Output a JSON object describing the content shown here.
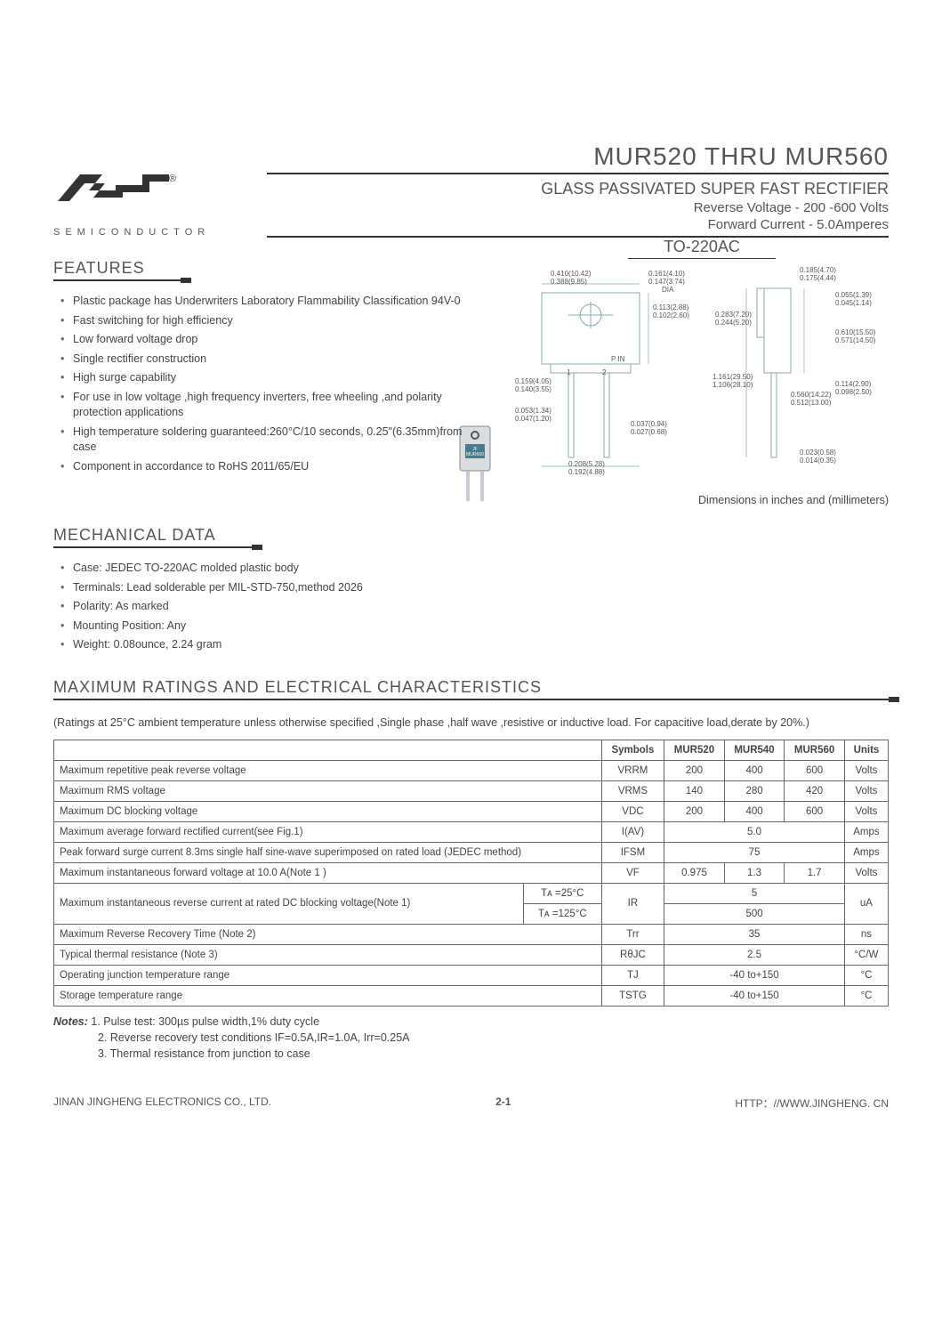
{
  "header": {
    "company_brand": "SEMICONDUCTOR",
    "main_title": "MUR520 THRU MUR560",
    "sub_title": "GLASS PASSIVATED SUPER FAST RECTIFIER",
    "spec1": "Reverse Voltage - 200 -600 Volts",
    "spec2": "Forward Current - 5.0Amperes",
    "reg_mark": "®"
  },
  "features": {
    "heading": "FEATURES",
    "items": [
      "Plastic package has Underwriters Laboratory Flammability Classification 94V-0",
      "Fast switching for high efficiency",
      "Low forward voltage drop",
      "Single rectifier construction",
      "High surge capability",
      "For use in low voltage ,high frequency inverters, free wheeling ,and polarity protection applications",
      "High temperature soldering guaranteed:260°C/10 seconds, 0.25\"(6.35mm)from case",
      "Component in accordance to RoHS 2011/65/EU"
    ]
  },
  "package": {
    "title": "TO-220AC",
    "chip_label": "JF\nMUR560",
    "dims_caption": "Dimensions in inches and (millimeters)",
    "dims": [
      "0.410(10.42)",
      "0.388(9.85)",
      "0.161(4.10)",
      "0.147(3.74)",
      "DIA",
      "0.185(4.70)",
      "0.175(4.44)",
      "0.113(2.88)",
      "0.102(2.60)",
      "0.055(1.39)",
      "0.045(1.14)",
      "0.283(7.20)",
      "0.244(5.20)",
      "0.610(15.50)",
      "0.571(14.50)",
      "P IN",
      "1",
      "2",
      "0.159(4.05)",
      "0.140(3.55)",
      "1.161(29.50)",
      "1.106(28.10)",
      "0.053(1.34)",
      "0.047(1.20)",
      "0.560(14.22)",
      "0.512(13.00)",
      "0.114(2.90)",
      "0.098(2.50)",
      "0.037(0.94)",
      "0.027(0.68)",
      "0.208(5.28)",
      "0.192(4.88)",
      "0.023(0.58)",
      "0.014(0.35)"
    ]
  },
  "mechanical": {
    "heading": "MECHANICAL DATA",
    "items": [
      "Case: JEDEC TO-220AC  molded plastic body",
      "Terminals: Lead solderable per MIL-STD-750,method 2026",
      "Polarity: As marked",
      "Mounting Position: Any",
      "Weight: 0.08ounce, 2.24 gram"
    ]
  },
  "ratings": {
    "heading": "MAXIMUM RATINGS AND ELECTRICAL CHARACTERISTICS",
    "note": "(Ratings at 25°C ambient temperature unless otherwise specified ,Single phase ,half wave ,resistive or inductive load. For capacitive load,derate by 20%.)",
    "cols": [
      "Symbols",
      "MUR520",
      "MUR540",
      "MUR560",
      "Units"
    ],
    "rows": [
      {
        "param": "Maximum repetitive peak reverse voltage",
        "sym": "VRRM",
        "v": [
          "200",
          "400",
          "600"
        ],
        "unit": "Volts"
      },
      {
        "param": "Maximum RMS voltage",
        "sym": "VRMS",
        "v": [
          "140",
          "280",
          "420"
        ],
        "unit": "Volts"
      },
      {
        "param": "Maximum DC blocking voltage",
        "sym": "VDC",
        "v": [
          "200",
          "400",
          "600"
        ],
        "unit": "Volts"
      },
      {
        "param": "Maximum average forward rectified current(see Fig.1)",
        "sym": "I(AV)",
        "span": "5.0",
        "unit": "Amps"
      },
      {
        "param": "Peak forward surge current 8.3ms single half sine-wave superimposed on rated load (JEDEC method)",
        "sym": "IFSM",
        "span": "75",
        "unit": "Amps"
      },
      {
        "param": "Maximum instantaneous forward voltage at 10.0 A(Note 1 )",
        "sym": "VF",
        "v": [
          "0.975",
          "1.3",
          "1.7"
        ],
        "unit": "Volts"
      },
      {
        "param": "Maximum instantaneous reverse current at rated DC blocking voltage(Note 1)",
        "cond": [
          "Tᴀ =25°C",
          "Tᴀ =125°C"
        ],
        "sym": "IR",
        "spans": [
          "5",
          "500"
        ],
        "unit": "uA"
      },
      {
        "param": "Maximum Reverse Recovery Time (Note 2)",
        "sym": "Trr",
        "span": "35",
        "unit": "ns"
      },
      {
        "param": "Typical thermal resistance (Note 3)",
        "sym": "RθJC",
        "span": "2.5",
        "unit": "°C/W"
      },
      {
        "param": "Operating junction temperature range",
        "sym": "TJ",
        "span": "-40 to+150",
        "unit": "°C"
      },
      {
        "param": "Storage temperature range",
        "sym": "TSTG",
        "span": "-40 to+150",
        "unit": "°C"
      }
    ]
  },
  "notes": {
    "label": "Notes:",
    "items": [
      "1. Pulse test: 300µs pulse width,1% duty cycle",
      "2. Reverse recovery test conditions IF=0.5A,IR=1.0A, Irr=0.25A",
      "3. Thermal resistance from junction to case"
    ]
  },
  "footer": {
    "company": "JINAN JINGHENG  ELECTRONICS   CO., LTD.",
    "page": "2-1",
    "url": "HTTP：//WWW.JINGHENG. CN"
  }
}
